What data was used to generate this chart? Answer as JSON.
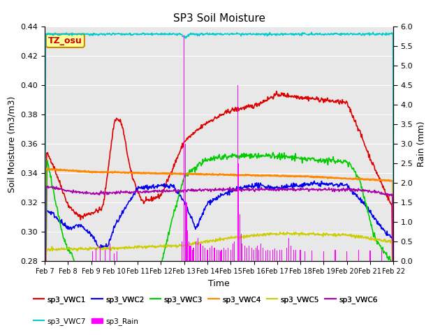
{
  "title": "SP3 Soil Moisture",
  "xlabel": "Time",
  "ylabel_left": "Soil Moisture (m3/m3)",
  "ylabel_right": "Rain (mm)",
  "ylim_left": [
    0.28,
    0.44
  ],
  "ylim_right": [
    0.0,
    6.0
  ],
  "annotation_label": "TZ_osu",
  "annotation_color": "#cc0000",
  "annotation_bg": "#ffff99",
  "annotation_border": "#cc8800",
  "colors": {
    "VWC1": "#dd0000",
    "VWC2": "#0000ee",
    "VWC3": "#00cc00",
    "VWC4": "#ff8800",
    "VWC5": "#cccc00",
    "VWC6": "#aa00aa",
    "VWC7": "#00cccc",
    "Rain": "#ff00ff"
  },
  "x_tick_labels": [
    "Feb 7",
    "Feb 8",
    "Feb 9",
    "Feb 10",
    "Feb 11",
    "Feb 12",
    "Feb 13",
    "Feb 14",
    "Feb 15",
    "Feb 16",
    "Feb 17",
    "Feb 18",
    "Feb 19",
    "Feb 20",
    "Feb 21",
    "Feb 22"
  ],
  "yticks_left": [
    0.28,
    0.3,
    0.32,
    0.34,
    0.36,
    0.38,
    0.4,
    0.42,
    0.44
  ],
  "yticks_right": [
    0.0,
    0.5,
    1.0,
    1.5,
    2.0,
    2.5,
    3.0,
    3.5,
    4.0,
    4.5,
    5.0,
    5.5,
    6.0
  ],
  "legend_row1": [
    "sp3_VWC1",
    "sp3_VWC2",
    "sp3_VWC3",
    "sp3_VWC4",
    "sp3_VWC5",
    "sp3_VWC6"
  ],
  "legend_row2": [
    "sp3_VWC7",
    "sp3_Rain"
  ],
  "legend_colors": [
    "#dd0000",
    "#0000ee",
    "#00cc00",
    "#ff8800",
    "#cccc00",
    "#aa00aa",
    "#00cccc",
    "#ff00ff"
  ]
}
